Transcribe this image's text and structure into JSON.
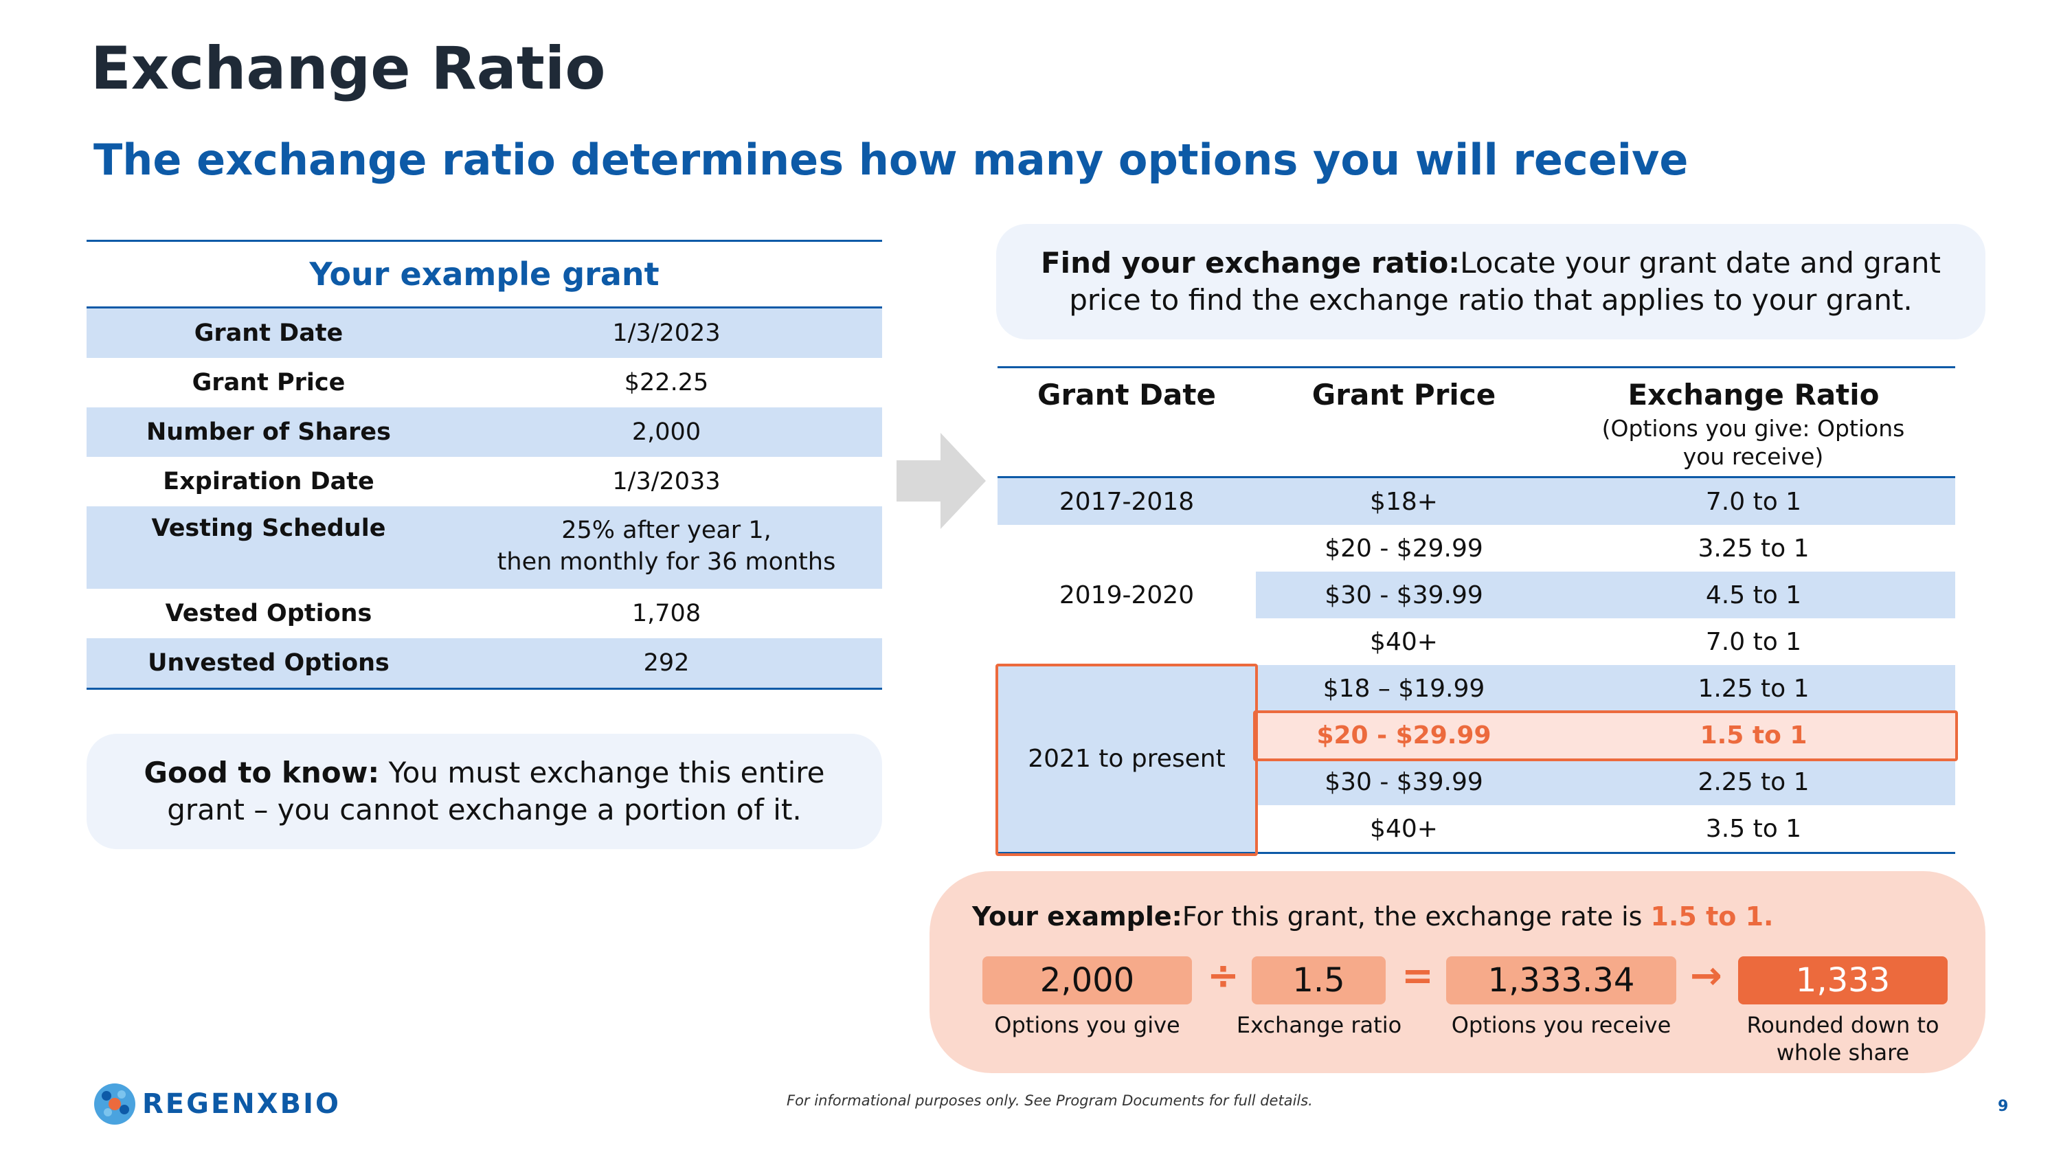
{
  "header": {
    "title": "Exchange Ratio",
    "subtitle": "The exchange ratio determines how many options you will receive"
  },
  "example_grant": {
    "heading": "Your example grant",
    "rows": [
      {
        "label": "Grant Date",
        "value": "1/3/2023"
      },
      {
        "label": "Grant Price",
        "value": "$22.25"
      },
      {
        "label": "Number of Shares",
        "value": "2,000"
      },
      {
        "label": "Expiration Date",
        "value": "1/3/2033"
      },
      {
        "label": "Vesting Schedule",
        "value_line1": "25% after year 1,",
        "value_line2": "then monthly for 36 months"
      },
      {
        "label": "Vested Options",
        "value": "1,708"
      },
      {
        "label": "Unvested Options",
        "value": "292"
      }
    ]
  },
  "good_to_know": {
    "bold": "Good to know:",
    "text": " You must exchange this entire grant – you cannot exchange a portion of it."
  },
  "find_ratio": {
    "bold": "Find your exchange ratio:",
    "text": "Locate your grant date and grant price to find the exchange ratio that applies to your grant."
  },
  "ratio_table": {
    "headers": {
      "grant_date": "Grant Date",
      "grant_price": "Grant Price",
      "exchange_ratio": "Exchange Ratio",
      "exchange_ratio_sub": "(Options you give: Options you receive)"
    },
    "groups": [
      {
        "date": "2017-2018",
        "rows": [
          {
            "price": "$18+",
            "ratio": "7.0 to 1"
          }
        ]
      },
      {
        "date": "2019-2020",
        "rows": [
          {
            "price": "$20 - $29.99",
            "ratio": "3.25 to 1"
          },
          {
            "price": "$30 - $39.99",
            "ratio": "4.5 to 1"
          },
          {
            "price": "$40+",
            "ratio": "7.0 to 1"
          }
        ]
      },
      {
        "date": "2021 to present",
        "rows": [
          {
            "price": "$18 – $19.99",
            "ratio": "1.25 to 1"
          },
          {
            "price": "$20 - $29.99",
            "ratio": "1.5 to 1",
            "highlighted": true
          },
          {
            "price": "$30 - $39.99",
            "ratio": "2.25 to 1"
          },
          {
            "price": "$40+",
            "ratio": "3.5 to 1"
          }
        ]
      }
    ]
  },
  "example": {
    "bold": "Your example:",
    "text": "For this grant, the exchange rate is ",
    "rate": "1.5 to 1.",
    "calc": [
      {
        "value": "2,000",
        "label": "Options you give"
      },
      {
        "value": "1.5",
        "label": "Exchange ratio"
      },
      {
        "value": "1,333.34",
        "label": "Options you receive"
      },
      {
        "value": "1,333",
        "label_line1": "Rounded down to",
        "label_line2": "whole share"
      }
    ],
    "ops": {
      "divide": "÷",
      "equals": "=",
      "arrow": "→"
    }
  },
  "footer": {
    "logo_text": "REGENXBIO",
    "note": "For informational purposes only. See Program Documents for full details.",
    "page_number": "9"
  },
  "colors": {
    "navy": "#0d5aa7",
    "light_blue": "#cfe0f5",
    "orange": "#ec6a3d",
    "peach": "#fbd9cd"
  }
}
